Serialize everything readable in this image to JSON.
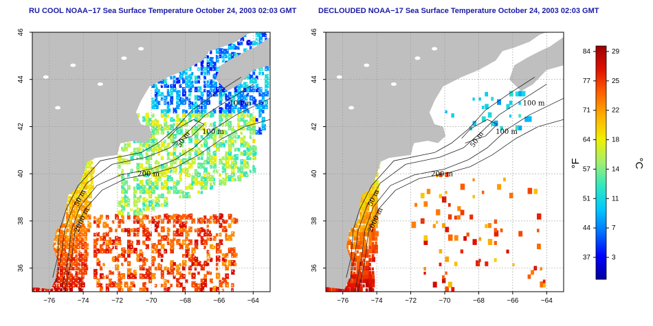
{
  "panels": [
    {
      "id": "left",
      "title": "RU COOL NOAA−17 Sea Surface Temperature October 24, 2003 02:03 GMT",
      "type": "raw"
    },
    {
      "id": "right",
      "title": "DECLOUDED NOAA−17 Sea Surface Temperature October 24, 2003 02:03 GMT",
      "type": "declouded"
    }
  ],
  "map": {
    "lon_range": [
      -77,
      -63
    ],
    "lat_range": [
      35,
      46
    ],
    "x_ticks": [
      -76,
      -74,
      -72,
      -70,
      -68,
      -66,
      -64
    ],
    "x_tick_labels": [
      "−76",
      "−74",
      "−72",
      "−70",
      "−68",
      "−66",
      "−64"
    ],
    "y_ticks": [
      36,
      38,
      40,
      42,
      44,
      46
    ],
    "y_tick_labels": [
      "36",
      "38",
      "40",
      "42",
      "44",
      "46"
    ],
    "grid": true,
    "land_color": "#bfbfbf",
    "cloud_color": "#ffffff",
    "contour_labels": [
      {
        "text": "200 m",
        "lon": -70.8,
        "lat": 39.9
      },
      {
        "text": "100 m",
        "lon": -67.0,
        "lat": 41.7
      },
      {
        "text": "50 m",
        "lon": -68.3,
        "lat": 41.1,
        "rotate": -55
      },
      {
        "text": "100 m",
        "lon": -65.4,
        "lat": 42.9
      },
      {
        "text": "50 m",
        "lon": -74.3,
        "lat": 38.6,
        "rotate": -65
      },
      {
        "text": "2000 m",
        "lon": -74.3,
        "lat": 37.5,
        "rotate": -65
      }
    ]
  },
  "colorbar": {
    "fahrenheit_label": "°F",
    "celsius_label": "°C",
    "fahrenheit_ticks": [
      "84",
      "77",
      "71",
      "64",
      "57",
      "51",
      "44",
      "37"
    ],
    "celsius_ticks": [
      "29",
      "25",
      "22",
      "18",
      "14",
      "11",
      "7",
      "3"
    ],
    "colors": [
      "#0000a0",
      "#0000ff",
      "#0070ff",
      "#00c8ff",
      "#30e8c0",
      "#a0f070",
      "#f0f000",
      "#ffb000",
      "#ff6000",
      "#e01000",
      "#9c0000"
    ]
  }
}
